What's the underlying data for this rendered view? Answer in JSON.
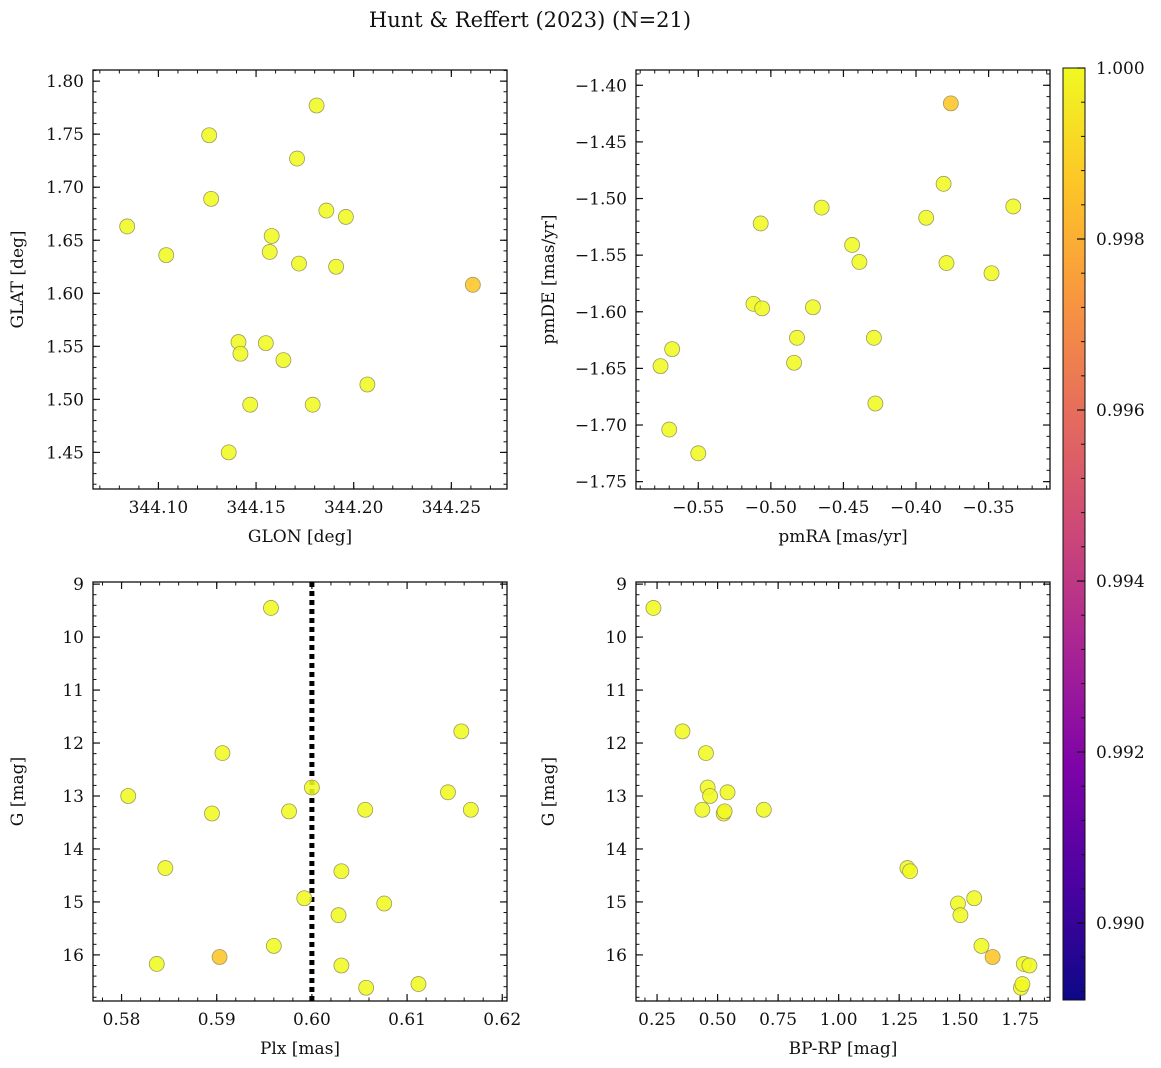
{
  "figure": {
    "title": "Hunt & Reffert (2023) (N=21)"
  },
  "colors": {
    "point_high": "#f0f921",
    "point_mid": "#fdc527",
    "point_edge": "#9e9a60",
    "axis": "#111111",
    "ref_line": "#000000"
  },
  "colorbar": {
    "range": [
      0.9891,
      1.0
    ],
    "colormap": "plasma",
    "ticks": [
      {
        "value": 0.99,
        "label": "0.990"
      },
      {
        "value": 0.992,
        "label": "0.992"
      },
      {
        "value": 0.994,
        "label": "0.994"
      },
      {
        "value": 0.996,
        "label": "0.996"
      },
      {
        "value": 0.998,
        "label": "0.998"
      },
      {
        "value": 1.0,
        "label": "1.000"
      }
    ]
  },
  "chart_data": [
    {
      "type": "scatter",
      "id": "glon_glat",
      "xlabel": "GLON [deg]",
      "ylabel": "GLAT [deg]",
      "xlim": [
        344.0665,
        344.2785
      ],
      "ylim": [
        1.4155,
        1.8105
      ],
      "y_inverted": false,
      "xticks": [
        {
          "value": 344.1,
          "label": "344.10"
        },
        {
          "value": 344.15,
          "label": "344.15"
        },
        {
          "value": 344.2,
          "label": "344.20"
        },
        {
          "value": 344.25,
          "label": "344.25"
        }
      ],
      "yticks": [
        {
          "value": 1.45,
          "label": "1.45"
        },
        {
          "value": 1.5,
          "label": "1.50"
        },
        {
          "value": 1.55,
          "label": "1.55"
        },
        {
          "value": 1.6,
          "label": "1.60"
        },
        {
          "value": 1.65,
          "label": "1.65"
        },
        {
          "value": 1.7,
          "label": "1.70"
        },
        {
          "value": 1.75,
          "label": "1.75"
        },
        {
          "value": 1.8,
          "label": "1.80"
        }
      ],
      "points": [
        {
          "x": 344.084,
          "y": 1.663,
          "c": 1.0
        },
        {
          "x": 344.104,
          "y": 1.636,
          "c": 1.0
        },
        {
          "x": 344.126,
          "y": 1.749,
          "c": 1.0
        },
        {
          "x": 344.127,
          "y": 1.689,
          "c": 1.0
        },
        {
          "x": 344.136,
          "y": 1.45,
          "c": 1.0
        },
        {
          "x": 344.141,
          "y": 1.554,
          "c": 1.0
        },
        {
          "x": 344.142,
          "y": 1.543,
          "c": 1.0
        },
        {
          "x": 344.147,
          "y": 1.495,
          "c": 1.0
        },
        {
          "x": 344.155,
          "y": 1.553,
          "c": 1.0
        },
        {
          "x": 344.157,
          "y": 1.639,
          "c": 1.0
        },
        {
          "x": 344.158,
          "y": 1.654,
          "c": 1.0
        },
        {
          "x": 344.164,
          "y": 1.537,
          "c": 1.0
        },
        {
          "x": 344.171,
          "y": 1.727,
          "c": 1.0
        },
        {
          "x": 344.172,
          "y": 1.628,
          "c": 1.0
        },
        {
          "x": 344.179,
          "y": 1.495,
          "c": 1.0
        },
        {
          "x": 344.181,
          "y": 1.777,
          "c": 1.0
        },
        {
          "x": 344.186,
          "y": 1.678,
          "c": 1.0
        },
        {
          "x": 344.191,
          "y": 1.625,
          "c": 1.0
        },
        {
          "x": 344.196,
          "y": 1.672,
          "c": 1.0
        },
        {
          "x": 344.207,
          "y": 1.514,
          "c": 1.0
        },
        {
          "x": 344.261,
          "y": 1.608,
          "c": 0.9983
        }
      ]
    },
    {
      "type": "scatter",
      "id": "pmra_pmde",
      "xlabel": "pmRA [mas/yr]",
      "ylabel": "pmDE [mas/yr]",
      "xlim": [
        -0.5929,
        -0.3077
      ],
      "ylim": [
        -1.7565,
        -1.3865
      ],
      "y_inverted": false,
      "xticks": [
        {
          "value": -0.55,
          "label": "−0.55"
        },
        {
          "value": -0.5,
          "label": "−0.50"
        },
        {
          "value": -0.45,
          "label": "−0.45"
        },
        {
          "value": -0.4,
          "label": "−0.40"
        },
        {
          "value": -0.35,
          "label": "−0.35"
        }
      ],
      "yticks": [
        {
          "value": -1.75,
          "label": "−1.75"
        },
        {
          "value": -1.7,
          "label": "−1.70"
        },
        {
          "value": -1.65,
          "label": "−1.65"
        },
        {
          "value": -1.6,
          "label": "−1.60"
        },
        {
          "value": -1.55,
          "label": "−1.55"
        },
        {
          "value": -1.5,
          "label": "−1.50"
        },
        {
          "value": -1.45,
          "label": "−1.45"
        },
        {
          "value": -1.4,
          "label": "−1.40"
        }
      ],
      "points": [
        {
          "x": -0.576,
          "y": -1.648,
          "c": 1.0
        },
        {
          "x": -0.568,
          "y": -1.633,
          "c": 1.0
        },
        {
          "x": -0.57,
          "y": -1.704,
          "c": 1.0
        },
        {
          "x": -0.55,
          "y": -1.725,
          "c": 1.0
        },
        {
          "x": -0.512,
          "y": -1.593,
          "c": 1.0
        },
        {
          "x": -0.507,
          "y": -1.522,
          "c": 1.0
        },
        {
          "x": -0.506,
          "y": -1.597,
          "c": 1.0
        },
        {
          "x": -0.484,
          "y": -1.645,
          "c": 1.0
        },
        {
          "x": -0.482,
          "y": -1.623,
          "c": 1.0
        },
        {
          "x": -0.471,
          "y": -1.596,
          "c": 1.0
        },
        {
          "x": -0.465,
          "y": -1.508,
          "c": 1.0
        },
        {
          "x": -0.444,
          "y": -1.541,
          "c": 1.0
        },
        {
          "x": -0.439,
          "y": -1.556,
          "c": 1.0
        },
        {
          "x": -0.429,
          "y": -1.623,
          "c": 1.0
        },
        {
          "x": -0.428,
          "y": -1.681,
          "c": 1.0
        },
        {
          "x": -0.393,
          "y": -1.517,
          "c": 1.0
        },
        {
          "x": -0.381,
          "y": -1.487,
          "c": 1.0
        },
        {
          "x": -0.379,
          "y": -1.557,
          "c": 1.0
        },
        {
          "x": -0.376,
          "y": -1.416,
          "c": 0.9983
        },
        {
          "x": -0.348,
          "y": -1.566,
          "c": 1.0
        },
        {
          "x": -0.333,
          "y": -1.507,
          "c": 1.0
        }
      ]
    },
    {
      "type": "scatter",
      "id": "plx_g",
      "xlabel": "Plx [mas]",
      "ylabel": "G [mag]",
      "xlim": [
        0.577,
        0.6205
      ],
      "ylim": [
        8.96,
        16.87
      ],
      "y_inverted": true,
      "reference_line": {
        "orientation": "vertical",
        "x": 0.6,
        "style": "dotted"
      },
      "xticks": [
        {
          "value": 0.58,
          "label": "0.58"
        },
        {
          "value": 0.59,
          "label": "0.59"
        },
        {
          "value": 0.6,
          "label": "0.60"
        },
        {
          "value": 0.61,
          "label": "0.61"
        },
        {
          "value": 0.62,
          "label": "0.62"
        }
      ],
      "yticks": [
        {
          "value": 9,
          "label": "9"
        },
        {
          "value": 10,
          "label": "10"
        },
        {
          "value": 11,
          "label": "11"
        },
        {
          "value": 12,
          "label": "12"
        },
        {
          "value": 13,
          "label": "13"
        },
        {
          "value": 14,
          "label": "14"
        },
        {
          "value": 15,
          "label": "15"
        },
        {
          "value": 16,
          "label": "16"
        }
      ],
      "points": [
        {
          "x": 0.5807,
          "y": 13.0,
          "c": 1.0
        },
        {
          "x": 0.5837,
          "y": 16.17,
          "c": 1.0
        },
        {
          "x": 0.5846,
          "y": 14.36,
          "c": 1.0
        },
        {
          "x": 0.5895,
          "y": 13.33,
          "c": 1.0
        },
        {
          "x": 0.5906,
          "y": 12.19,
          "c": 1.0
        },
        {
          "x": 0.5903,
          "y": 16.04,
          "c": 0.9985
        },
        {
          "x": 0.5957,
          "y": 9.45,
          "c": 1.0
        },
        {
          "x": 0.596,
          "y": 15.83,
          "c": 1.0
        },
        {
          "x": 0.5976,
          "y": 13.29,
          "c": 1.0
        },
        {
          "x": 0.5992,
          "y": 14.93,
          "c": 1.0
        },
        {
          "x": 0.6,
          "y": 12.84,
          "c": 1.0
        },
        {
          "x": 0.6028,
          "y": 15.25,
          "c": 1.0
        },
        {
          "x": 0.6031,
          "y": 14.42,
          "c": 1.0
        },
        {
          "x": 0.6031,
          "y": 16.2,
          "c": 1.0
        },
        {
          "x": 0.6056,
          "y": 13.26,
          "c": 1.0
        },
        {
          "x": 0.6057,
          "y": 16.62,
          "c": 1.0
        },
        {
          "x": 0.6076,
          "y": 15.03,
          "c": 1.0
        },
        {
          "x": 0.6112,
          "y": 16.55,
          "c": 1.0
        },
        {
          "x": 0.6143,
          "y": 12.93,
          "c": 1.0
        },
        {
          "x": 0.6157,
          "y": 11.78,
          "c": 1.0
        },
        {
          "x": 0.6167,
          "y": 13.26,
          "c": 1.0
        }
      ]
    },
    {
      "type": "scatter",
      "id": "bprp_g",
      "xlabel": "BP-RP [mag]",
      "ylabel": "G [mag]",
      "xlim": [
        0.163,
        1.873
      ],
      "ylim": [
        8.96,
        16.87
      ],
      "y_inverted": true,
      "xticks": [
        {
          "value": 0.25,
          "label": "0.25"
        },
        {
          "value": 0.5,
          "label": "0.50"
        },
        {
          "value": 0.75,
          "label": "0.75"
        },
        {
          "value": 1.0,
          "label": "1.00"
        },
        {
          "value": 1.25,
          "label": "1.25"
        },
        {
          "value": 1.5,
          "label": "1.50"
        },
        {
          "value": 1.75,
          "label": "1.75"
        }
      ],
      "yticks": [
        {
          "value": 9,
          "label": "9"
        },
        {
          "value": 10,
          "label": "10"
        },
        {
          "value": 11,
          "label": "11"
        },
        {
          "value": 12,
          "label": "12"
        },
        {
          "value": 13,
          "label": "13"
        },
        {
          "value": 14,
          "label": "14"
        },
        {
          "value": 15,
          "label": "15"
        },
        {
          "value": 16,
          "label": "16"
        }
      ],
      "points": [
        {
          "x": 0.235,
          "y": 9.45,
          "c": 1.0
        },
        {
          "x": 0.355,
          "y": 11.78,
          "c": 1.0
        },
        {
          "x": 0.437,
          "y": 13.26,
          "c": 1.0
        },
        {
          "x": 0.452,
          "y": 12.19,
          "c": 1.0
        },
        {
          "x": 0.459,
          "y": 12.84,
          "c": 1.0
        },
        {
          "x": 0.469,
          "y": 13.0,
          "c": 1.0
        },
        {
          "x": 0.525,
          "y": 13.33,
          "c": 1.0
        },
        {
          "x": 0.529,
          "y": 13.29,
          "c": 1.0
        },
        {
          "x": 0.541,
          "y": 12.93,
          "c": 1.0
        },
        {
          "x": 0.691,
          "y": 13.26,
          "c": 1.0
        },
        {
          "x": 1.284,
          "y": 14.36,
          "c": 1.0
        },
        {
          "x": 1.295,
          "y": 14.42,
          "c": 1.0
        },
        {
          "x": 1.493,
          "y": 15.03,
          "c": 1.0
        },
        {
          "x": 1.503,
          "y": 15.25,
          "c": 1.0
        },
        {
          "x": 1.56,
          "y": 14.93,
          "c": 1.0
        },
        {
          "x": 1.59,
          "y": 15.83,
          "c": 1.0
        },
        {
          "x": 1.636,
          "y": 16.04,
          "c": 0.9985
        },
        {
          "x": 1.753,
          "y": 16.62,
          "c": 1.0
        },
        {
          "x": 1.759,
          "y": 16.55,
          "c": 1.0
        },
        {
          "x": 1.765,
          "y": 16.17,
          "c": 1.0
        },
        {
          "x": 1.788,
          "y": 16.2,
          "c": 1.0
        }
      ]
    }
  ]
}
